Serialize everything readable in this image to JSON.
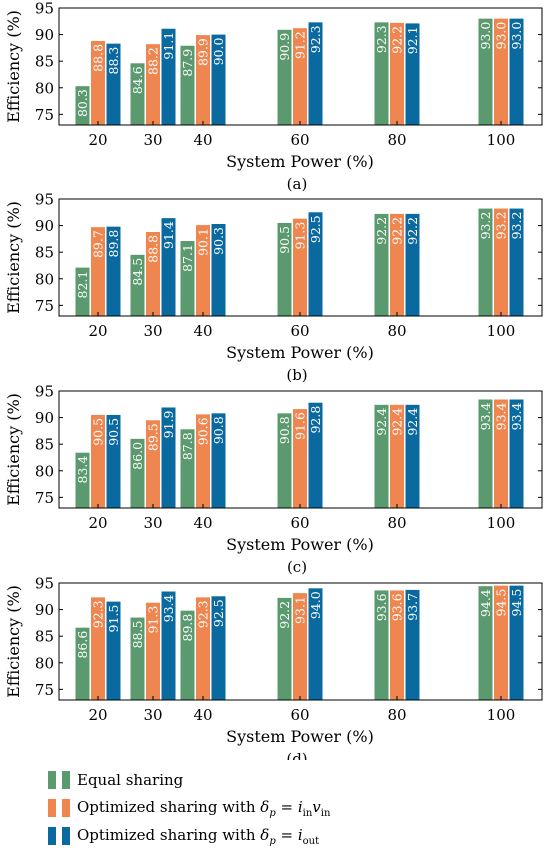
{
  "chart_data": [
    {
      "type": "bar",
      "caption": "(a)",
      "categories": [
        "20",
        "30",
        "40",
        "60",
        "80",
        "100"
      ],
      "xlabel": "System Power (%)",
      "ylabel": "Efficiency (%)",
      "ylim": [
        73,
        95
      ],
      "yticks": [
        "75",
        "80",
        "85",
        "90",
        "95"
      ],
      "series": [
        {
          "name": "Equal sharing",
          "values": [
            80.3,
            84.6,
            87.9,
            90.9,
            92.3,
            93.0
          ],
          "labels": [
            "80.3",
            "84.6",
            "87.9",
            "90.9",
            "92.3",
            "93.0"
          ]
        },
        {
          "name": "Optimized sharing with δp = in vin",
          "values": [
            88.8,
            88.2,
            89.9,
            91.2,
            92.2,
            93.0
          ],
          "labels": [
            "88.8",
            "88.2",
            "89.9",
            "91.2",
            "92.2",
            "93.0"
          ]
        },
        {
          "name": "Optimized sharing with δp = iout",
          "values": [
            88.3,
            91.1,
            90.0,
            92.3,
            92.1,
            93.0
          ],
          "labels": [
            "88.3",
            "91.1",
            "90.0",
            "92.3",
            "92.1",
            "93.0"
          ]
        }
      ]
    },
    {
      "type": "bar",
      "caption": "(b)",
      "categories": [
        "20",
        "30",
        "40",
        "60",
        "80",
        "100"
      ],
      "xlabel": "System Power (%)",
      "ylabel": "Efficiency (%)",
      "ylim": [
        73,
        95
      ],
      "yticks": [
        "75",
        "80",
        "85",
        "90",
        "95"
      ],
      "series": [
        {
          "name": "Equal sharing",
          "values": [
            82.1,
            84.5,
            87.1,
            90.5,
            92.2,
            93.2
          ],
          "labels": [
            "82.1",
            "84.5",
            "87.1",
            "90.5",
            "92.2",
            "93.2"
          ]
        },
        {
          "name": "Optimized sharing with δp = in vin",
          "values": [
            89.7,
            88.8,
            90.1,
            91.3,
            92.2,
            93.2
          ],
          "labels": [
            "89.7",
            "88.8",
            "90.1",
            "91.3",
            "92.2",
            "93.2"
          ]
        },
        {
          "name": "Optimized sharing with δp = iout",
          "values": [
            89.8,
            91.4,
            90.3,
            92.5,
            92.2,
            93.2
          ],
          "labels": [
            "89.8",
            "91.4",
            "90.3",
            "92.5",
            "92.2",
            "93.2"
          ]
        }
      ]
    },
    {
      "type": "bar",
      "caption": "(c)",
      "categories": [
        "20",
        "30",
        "40",
        "60",
        "80",
        "100"
      ],
      "xlabel": "System Power (%)",
      "ylabel": "Efficiency (%)",
      "ylim": [
        73,
        95
      ],
      "yticks": [
        "75",
        "80",
        "85",
        "90",
        "95"
      ],
      "series": [
        {
          "name": "Equal sharing",
          "values": [
            83.4,
            86.0,
            87.8,
            90.8,
            92.4,
            93.4
          ],
          "labels": [
            "83.4",
            "86.0",
            "87.8",
            "90.8",
            "92.4",
            "93.4"
          ]
        },
        {
          "name": "Optimized sharing with δp = in vin",
          "values": [
            90.5,
            89.5,
            90.6,
            91.6,
            92.4,
            93.4
          ],
          "labels": [
            "90.5",
            "89.5",
            "90.6",
            "91.6",
            "92.4",
            "93.4"
          ]
        },
        {
          "name": "Optimized sharing with δp = iout",
          "values": [
            90.5,
            91.9,
            90.8,
            92.8,
            92.4,
            93.4
          ],
          "labels": [
            "90.5",
            "91.9",
            "90.8",
            "92.8",
            "92.4",
            "93.4"
          ]
        }
      ]
    },
    {
      "type": "bar",
      "caption": "(d)",
      "categories": [
        "20",
        "30",
        "40",
        "60",
        "80",
        "100"
      ],
      "xlabel": "System Power (%)",
      "ylabel": "Efficiency (%)",
      "ylim": [
        73,
        95
      ],
      "yticks": [
        "75",
        "80",
        "85",
        "90",
        "95"
      ],
      "series": [
        {
          "name": "Equal sharing",
          "values": [
            86.6,
            88.5,
            89.8,
            92.2,
            93.6,
            94.4
          ],
          "labels": [
            "86.6",
            "88.5",
            "89.8",
            "92.2",
            "93.6",
            "94.4"
          ]
        },
        {
          "name": "Optimized sharing with δp = in vin",
          "values": [
            92.3,
            91.3,
            92.3,
            93.1,
            93.6,
            94.5
          ],
          "labels": [
            "92.3",
            "91.3",
            "92.3",
            "93.1",
            "93.6",
            "94.5"
          ]
        },
        {
          "name": "Optimized sharing with δp = iout",
          "values": [
            91.5,
            93.4,
            92.5,
            94.0,
            93.7,
            94.5
          ],
          "labels": [
            "91.5",
            "93.4",
            "92.5",
            "94.0",
            "93.7",
            "94.5"
          ]
        }
      ]
    }
  ],
  "legend": {
    "items": [
      {
        "prefix": "Equal sharing",
        "sym": "",
        "sub1": "",
        "mid": "",
        "sym2": "",
        "sub2": ""
      },
      {
        "prefix": "Optimized sharing with ",
        "sym": "δ",
        "sub1": "p",
        "mid": " = i",
        "sub2": "in",
        "sym2": "v",
        "sub3": "in"
      },
      {
        "prefix": "Optimized sharing with ",
        "sym": "δ",
        "sub1": "p",
        "mid": " = i",
        "sub2": "out",
        "sym2": "",
        "sub3": ""
      }
    ]
  },
  "colors": {
    "series": [
      "#5b9a6e",
      "#ef8650",
      "#0a6aa0"
    ],
    "label_text": "#ffffff",
    "axis": "#000000"
  }
}
